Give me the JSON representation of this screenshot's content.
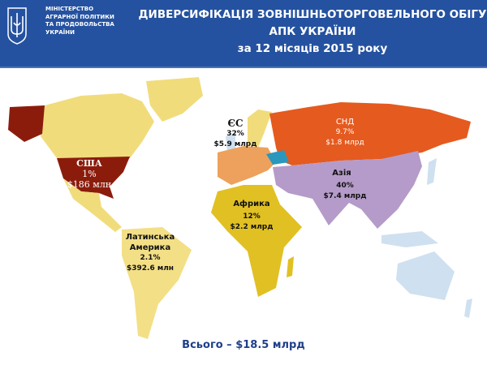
{
  "header": {
    "ministry_lines": [
      "МІНІСТЕРСТВО",
      "АГРАРНОЇ ПОЛІТИКИ",
      "ТА ПРОДОВОЛЬСТВА",
      "УКРАЇНИ"
    ],
    "title_line1": "ДИВЕРСИФІКАЦІЯ  ЗОВНІШНЬОТОРГОВЕЛЬНОГО  ОБІГУ",
    "title_line2": "АПК УКРАЇНИ",
    "title_line3": "за 12 місяців 2015 року",
    "crest_icon": "trident-coat-of-arms-icon"
  },
  "regions": {
    "usa": {
      "name": "США",
      "share": "1%",
      "value": "$186 млн",
      "color": "#8b1c0c"
    },
    "eu": {
      "name": "ЄС",
      "share": "32%",
      "value": "$5.9 млрд",
      "color": "#eda15c"
    },
    "cis": {
      "name": "СНД",
      "share": "9.7%",
      "value": "$1.8 млрд",
      "color": "#e55a1f"
    },
    "asia": {
      "name": "Азія",
      "share": "40%",
      "value": "$7.4 млрд",
      "color": "#b59bc9"
    },
    "africa": {
      "name": "Африка",
      "share": "12%",
      "value": "$2.2 млрд",
      "color": "#e1c023"
    },
    "latam": {
      "name": "Латинська Америка",
      "name_line1": "Латинська",
      "name_line2": "Америка",
      "share": "2.1%",
      "value": "$392.6 млн",
      "color": "#f3df86"
    },
    "ukraine": {
      "color": "#2b97bd"
    }
  },
  "total": "Всього – $18.5 млрд"
}
